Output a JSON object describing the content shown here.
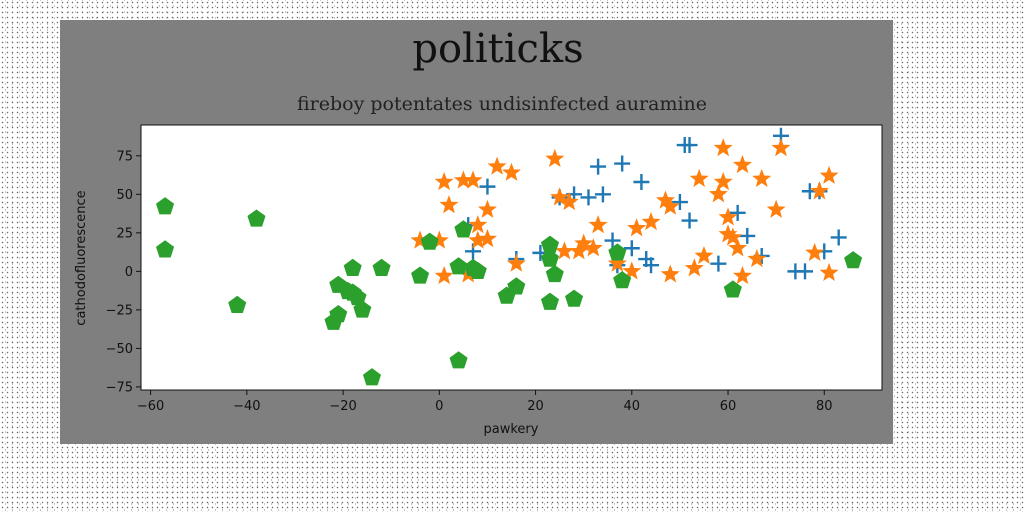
{
  "chart_data": {
    "type": "scatter",
    "title": "politicks",
    "subtitle": "fireboy potentates undisinfected auramine",
    "xlabel": "pawkery",
    "ylabel": "cathodofluorescence",
    "xlim": [
      -62,
      92
    ],
    "ylim": [
      -77,
      95
    ],
    "xticks": [
      -60,
      -40,
      -20,
      0,
      20,
      40,
      60,
      80
    ],
    "yticks": [
      -75,
      -50,
      -25,
      0,
      25,
      50,
      75
    ],
    "grid": false,
    "legend": "none",
    "series": [
      {
        "marker": "plus",
        "color": "#1f77b4",
        "points": [
          [
            6,
            30
          ],
          [
            7,
            13
          ],
          [
            10,
            55
          ],
          [
            16,
            8
          ],
          [
            21,
            12
          ],
          [
            25,
            48
          ],
          [
            28,
            50
          ],
          [
            31,
            48
          ],
          [
            33,
            68
          ],
          [
            34,
            50
          ],
          [
            36,
            20
          ],
          [
            37,
            4
          ],
          [
            38,
            70
          ],
          [
            40,
            15
          ],
          [
            42,
            58
          ],
          [
            43,
            8
          ],
          [
            44,
            4
          ],
          [
            50,
            45
          ],
          [
            51,
            82
          ],
          [
            52,
            33
          ],
          [
            52,
            82
          ],
          [
            58,
            5
          ],
          [
            62,
            38
          ],
          [
            64,
            23
          ],
          [
            67,
            10
          ],
          [
            71,
            88
          ],
          [
            74,
            0
          ],
          [
            76,
            0
          ],
          [
            77,
            52
          ],
          [
            79,
            52
          ],
          [
            80,
            13
          ],
          [
            83,
            22
          ]
        ]
      },
      {
        "marker": "star",
        "color": "#ff7f0e",
        "points": [
          [
            -4,
            20
          ],
          [
            0,
            20
          ],
          [
            1,
            58
          ],
          [
            1,
            -3
          ],
          [
            2,
            43
          ],
          [
            5,
            59
          ],
          [
            6,
            -2
          ],
          [
            7,
            59
          ],
          [
            8,
            20
          ],
          [
            8,
            30
          ],
          [
            10,
            40
          ],
          [
            10,
            21
          ],
          [
            12,
            68
          ],
          [
            15,
            64
          ],
          [
            16,
            5
          ],
          [
            24,
            73
          ],
          [
            25,
            48
          ],
          [
            26,
            13
          ],
          [
            27,
            45
          ],
          [
            29,
            13
          ],
          [
            30,
            18
          ],
          [
            32,
            15
          ],
          [
            33,
            30
          ],
          [
            37,
            5
          ],
          [
            40,
            0
          ],
          [
            41,
            28
          ],
          [
            44,
            32
          ],
          [
            47,
            46
          ],
          [
            48,
            42
          ],
          [
            48,
            -2
          ],
          [
            53,
            2
          ],
          [
            54,
            60
          ],
          [
            55,
            10
          ],
          [
            58,
            50
          ],
          [
            59,
            80
          ],
          [
            59,
            58
          ],
          [
            60,
            35
          ],
          [
            60,
            24
          ],
          [
            61,
            22
          ],
          [
            62,
            15
          ],
          [
            63,
            -3
          ],
          [
            63,
            69
          ],
          [
            66,
            8
          ],
          [
            67,
            60
          ],
          [
            70,
            40
          ],
          [
            71,
            80
          ],
          [
            78,
            12
          ],
          [
            79,
            52
          ],
          [
            81,
            -1
          ],
          [
            81,
            62
          ]
        ]
      },
      {
        "marker": "pentagon",
        "color": "#2ca02c",
        "points": [
          [
            -57,
            42
          ],
          [
            -57,
            14
          ],
          [
            -42,
            -22
          ],
          [
            -38,
            34
          ],
          [
            -22,
            -33
          ],
          [
            -21,
            -28
          ],
          [
            -21,
            -9
          ],
          [
            -19,
            -13
          ],
          [
            -18,
            2
          ],
          [
            -18,
            -14
          ],
          [
            -17,
            -17
          ],
          [
            -16,
            -25
          ],
          [
            -14,
            -69
          ],
          [
            -12,
            2
          ],
          [
            -4,
            -3
          ],
          [
            -2,
            19
          ],
          [
            4,
            -58
          ],
          [
            4,
            3
          ],
          [
            5,
            27
          ],
          [
            7,
            2
          ],
          [
            8,
            0
          ],
          [
            14,
            -16
          ],
          [
            16,
            -10
          ],
          [
            23,
            -20
          ],
          [
            23,
            17
          ],
          [
            23,
            8
          ],
          [
            24,
            -2
          ],
          [
            28,
            -18
          ],
          [
            37,
            12
          ],
          [
            38,
            -6
          ],
          [
            61,
            -12
          ],
          [
            86,
            7
          ]
        ]
      }
    ]
  }
}
